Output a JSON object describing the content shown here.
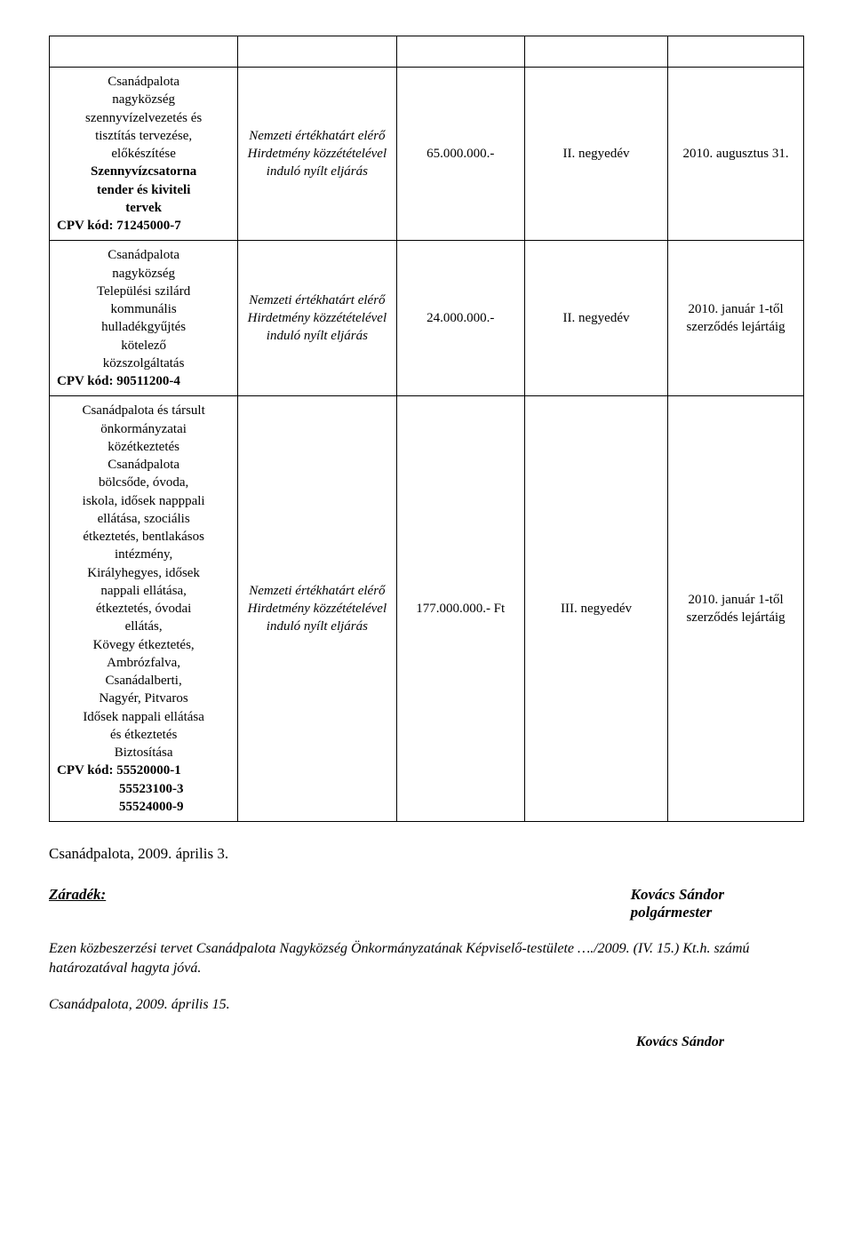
{
  "table": {
    "rows": [
      {
        "desc_lines": [
          "Csanádpalota",
          "nagyközség",
          "szennyvízelvezetés és",
          "tisztítás tervezése,",
          "előkészítése",
          "Szennyvízcsatorna",
          "tender és kiviteli",
          "tervek"
        ],
        "desc_bold_indexes": [
          5,
          6,
          7
        ],
        "cpv": "CPV kód: 71245000-7",
        "col2": "Nemzeti értékhatárt elérő Hirdetmény közzétételével induló nyílt eljárás",
        "col3": "65.000.000.-",
        "col4": "II. negyedév",
        "col5": "2010. augusztus 31."
      },
      {
        "desc_lines": [
          "Csanádpalota",
          "nagyközség",
          "Települési szilárd",
          "kommunális",
          "hulladékgyűjtés",
          "kötelező",
          "közszolgáltatás"
        ],
        "desc_bold_indexes": [],
        "cpv": "CPV kód: 90511200-4",
        "col2": "Nemzeti értékhatárt elérő Hirdetmény közzétételével induló nyílt eljárás",
        "col3": "24.000.000.-",
        "col4": "II. negyedév",
        "col5": "2010. január 1-től szerződés lejártáig"
      },
      {
        "desc_lines": [
          "Csanádpalota és társult",
          "önkormányzatai",
          "közétkeztetés",
          "Csanádpalota",
          "bölcsőde, óvoda,",
          "iskola, idősek napppali",
          "ellátása, szociális",
          "étkeztetés, bentlakásos",
          "intézmény,",
          "Királyhegyes, idősek",
          "nappali ellátása,",
          "étkeztetés, óvodai",
          "ellátás,",
          "Kövegy étkeztetés,",
          "Ambrózfalva,",
          "Csanádalberti,",
          "Nagyér, Pitvaros",
          "Idősek nappali ellátása",
          "és étkeztetés",
          "Biztosítása"
        ],
        "desc_bold_indexes": [],
        "cpv": "CPV kód: 55520000-1\n55523100-3\n55524000-9",
        "col2": "Nemzeti értékhatárt elérő Hirdetmény közzétételével induló nyílt eljárás",
        "col3": "177.000.000.- Ft",
        "col4": "III. negyedév",
        "col5": "2010. január 1-től szerződés lejártáig"
      }
    ]
  },
  "below_date": "Csanádpalota, 2009. április 3.",
  "zaradek": "Záradék:",
  "sig_name": "Kovács Sándor",
  "sig_title": "polgármester",
  "closing_paragraph": "Ezen közbeszerzési tervet Csanádpalota Nagyközség Önkormányzatának Képviselő-testülete …./2009. (IV. 15.) Kt.h. számú határozatával hagyta jóvá.",
  "closing_date": "Csanádpalota, 2009. április 15.",
  "footer_sig": "Kovács Sándor"
}
